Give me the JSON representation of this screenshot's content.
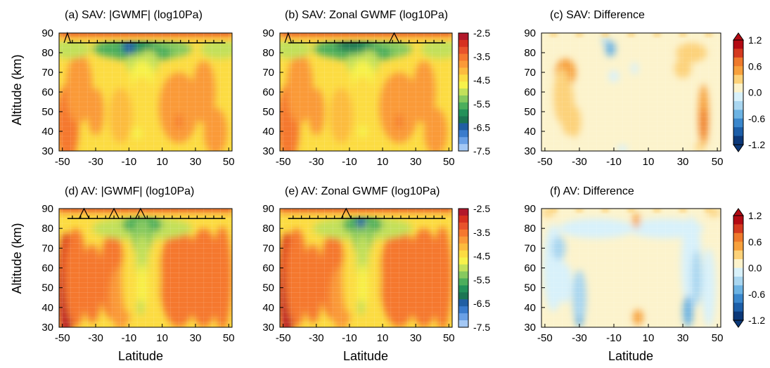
{
  "chart_data": {
    "type": "contour",
    "x_ticks": [
      -50,
      -30,
      -10,
      10,
      30,
      50
    ],
    "y_ticks": [
      30,
      40,
      50,
      60,
      70,
      80,
      90
    ],
    "xlim": [
      -52,
      52
    ],
    "ylim": [
      30,
      90
    ],
    "shared_ylabel": "Altitude (km)",
    "shared_xlabel": "Latitude",
    "panels": [
      {
        "id": "a",
        "title": "(a)  SAV:  |GWMF| (log10Pa)",
        "kind": "flux",
        "variant": "sav_abs"
      },
      {
        "id": "b",
        "title": "(b)  SAV:  Zonal GWMF (log10Pa)",
        "kind": "flux",
        "variant": "sav_zon"
      },
      {
        "id": "c",
        "title": "(c)  SAV:  Difference",
        "kind": "diff",
        "variant": "sav_diff"
      },
      {
        "id": "d",
        "title": "(d)  AV:  |GWMF| (log10Pa)",
        "kind": "flux",
        "variant": "av_abs"
      },
      {
        "id": "e",
        "title": "(e)  AV:  Zonal GWMF (log10Pa)",
        "kind": "flux",
        "variant": "av_zon"
      },
      {
        "id": "f",
        "title": "(f)  AV:  Difference",
        "kind": "diff",
        "variant": "av_diff"
      }
    ],
    "colorbars": [
      {
        "id": "flux",
        "labels": [
          "-2.5",
          "-3.5",
          "-4.5",
          "-5.5",
          "-6.5",
          "-7.5"
        ],
        "colors": [
          "#b2182b",
          "#d6301f",
          "#e8532b",
          "#f5782f",
          "#fa9a38",
          "#fcbb3e",
          "#fcdc42",
          "#f7f24a",
          "#c2e05a",
          "#86c95f",
          "#4cae5c",
          "#23915a",
          "#1c7553",
          "#215fa3",
          "#3a7bcc",
          "#6aa0e6",
          "#a4c8f5"
        ]
      },
      {
        "id": "diff",
        "labels": [
          "1.2",
          "0.6",
          "0.0",
          "-0.6",
          "-1.2"
        ],
        "colors": [
          "#b30a13",
          "#d43a1f",
          "#ee7a2c",
          "#f7a13d",
          "#fcd27a",
          "#fcf3cc",
          "#d8f1fa",
          "#a9d6f0",
          "#6cb3e3",
          "#3a87cc",
          "#1c5ea8",
          "#0b3879"
        ]
      }
    ]
  }
}
